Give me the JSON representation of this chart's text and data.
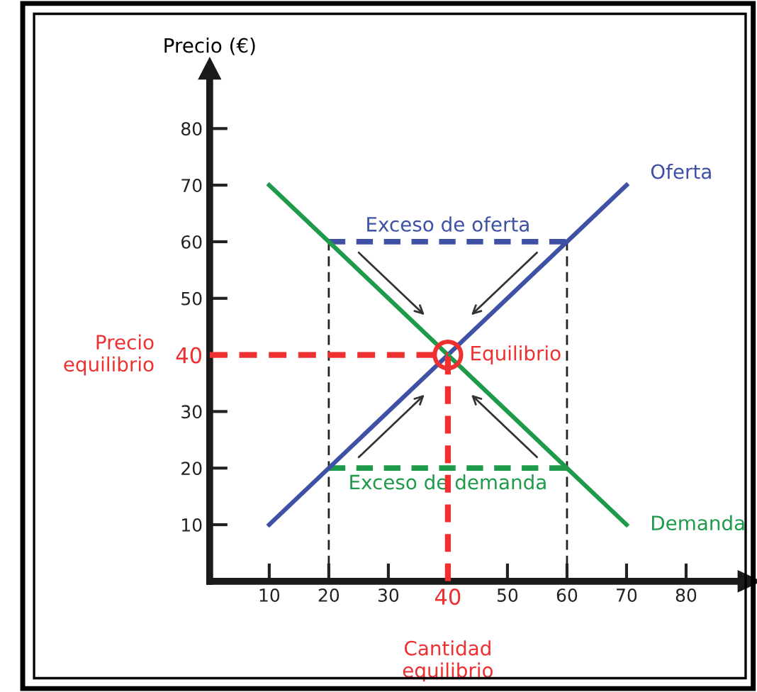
{
  "chart_data": {
    "type": "line",
    "ylabel": "Precio (€)",
    "xlim": [
      0,
      90
    ],
    "ylim": [
      0,
      90
    ],
    "xticks": [
      10,
      20,
      30,
      40,
      50,
      60,
      70,
      80
    ],
    "yticks": [
      10,
      20,
      30,
      40,
      50,
      60,
      70,
      80
    ],
    "grid": false,
    "marker": "none",
    "series": [
      {
        "name": "Oferta",
        "color": "#3f51a5",
        "x": [
          10,
          70
        ],
        "values": [
          10,
          70
        ]
      },
      {
        "name": "Demanda",
        "color": "#1e9b4a",
        "x": [
          10,
          70
        ],
        "values": [
          70,
          10
        ]
      },
      {
        "name": "Exceso de oferta",
        "color": "#3f51a5",
        "x": [
          20,
          60
        ],
        "values": [
          60,
          60
        ],
        "line_style": "dashed"
      },
      {
        "name": "Exceso de demanda",
        "color": "#1e9b4a",
        "x": [
          20,
          60
        ],
        "values": [
          20,
          20
        ],
        "line_style": "dashed"
      },
      {
        "name": "Equilibrio",
        "type": "scatter",
        "color": "#ee3030",
        "x": [
          40
        ],
        "values": [
          40
        ],
        "marker": "circle"
      }
    ],
    "ref_lines": [
      {
        "axis": "x",
        "value": 20,
        "color": "#222222",
        "line_style": "dashed"
      },
      {
        "axis": "x",
        "value": 60,
        "color": "#222222",
        "line_style": "dashed"
      },
      {
        "axis": "y",
        "value": 40,
        "label": "Precio\nequilibrio",
        "color": "#ee3030",
        "line_style": "dashed"
      },
      {
        "axis": "x",
        "value": 40,
        "label": "Cantidad\nequilibrio",
        "color": "#ee3030",
        "line_style": "dashed"
      }
    ]
  }
}
